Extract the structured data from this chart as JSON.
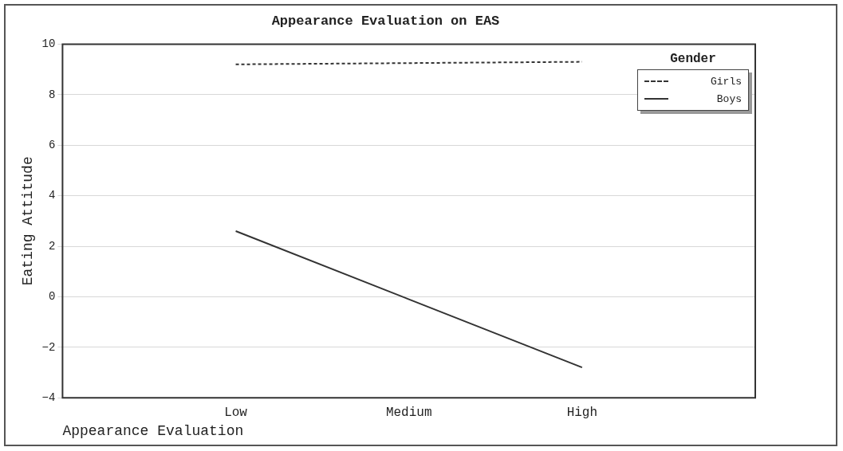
{
  "chart_data": {
    "type": "line",
    "title": "Appearance Evaluation on EAS",
    "xlabel": "Appearance Evaluation",
    "ylabel": "Eating Attitude",
    "legend_title": "Gender",
    "categories": [
      "Low",
      "Medium",
      "High"
    ],
    "series": [
      {
        "name": "Girls",
        "color": "#333333",
        "line_style": "dashed",
        "values": [
          9.2,
          9.25,
          9.3
        ]
      },
      {
        "name": "Boys",
        "color": "#333333",
        "line_style": "solid",
        "values": [
          2.6,
          -0.1,
          -2.8
        ]
      }
    ],
    "ylim": [
      -4,
      10
    ],
    "yticks": [
      -4,
      -2,
      0,
      2,
      4,
      6,
      8,
      10
    ],
    "grid": "y",
    "legend": "top right",
    "marker": "none"
  }
}
